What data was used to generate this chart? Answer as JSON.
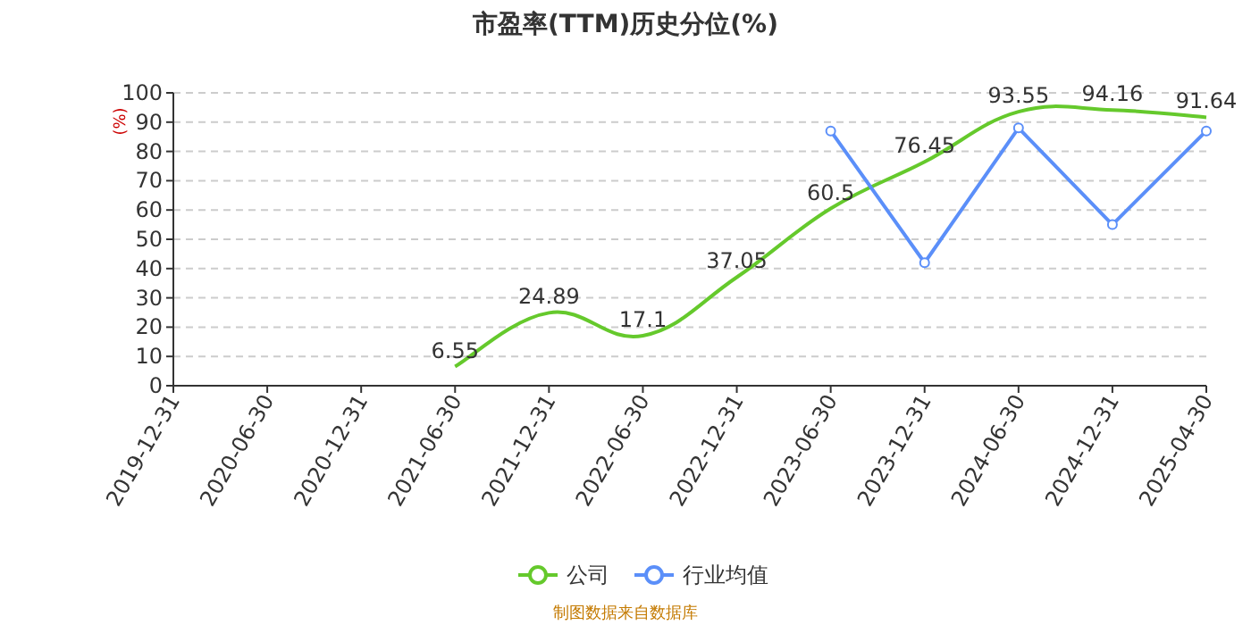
{
  "chart_data": {
    "type": "line",
    "title": "市盈率(TTM)历史分位(%)",
    "ylabel": "(%)",
    "categories": [
      "2019-12-31",
      "2020-06-30",
      "2020-12-31",
      "2021-06-30",
      "2021-12-31",
      "2022-06-30",
      "2022-12-31",
      "2023-06-30",
      "2023-12-31",
      "2024-06-30",
      "2024-12-31",
      "2025-04-30"
    ],
    "series": [
      {
        "name": "公司",
        "color": "#65c92c",
        "marker": "none",
        "values": [
          null,
          null,
          null,
          6.55,
          24.89,
          17.1,
          37.05,
          60.5,
          76.45,
          93.55,
          94.16,
          91.64
        ],
        "value_labels": [
          null,
          null,
          null,
          "6.55",
          "24.89",
          "17.1",
          "37.05",
          "60.5",
          "76.45",
          "93.55",
          "94.16",
          "91.64"
        ]
      },
      {
        "name": "行业均值",
        "color": "#5b8ff9",
        "marker": "circle",
        "values": [
          null,
          null,
          null,
          null,
          null,
          null,
          null,
          87,
          42,
          88,
          55,
          87
        ]
      }
    ],
    "ylim": [
      0,
      100
    ],
    "yticks": [
      0,
      10,
      20,
      30,
      40,
      50,
      60,
      70,
      80,
      90,
      100
    ],
    "grid": "y",
    "legend": "bottom",
    "annotations": [
      "制图数据来自数据库"
    ]
  }
}
